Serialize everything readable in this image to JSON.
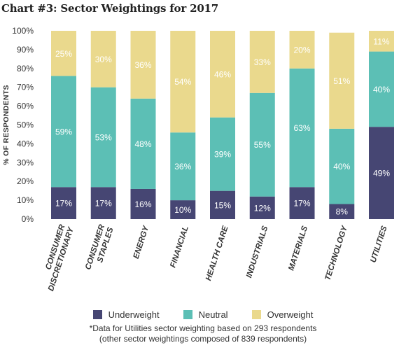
{
  "title": "Chart #3: Sector Weightings for 2017",
  "chart_data": {
    "type": "bar",
    "stacked": true,
    "title": "Chart #3: Sector Weightings for 2017",
    "ylabel": "% OF RESPONDENTS",
    "xlabel": "",
    "ylim": [
      0,
      100
    ],
    "yticks": [
      "0%",
      "10%",
      "20%",
      "30%",
      "40%",
      "50%",
      "60%",
      "70%",
      "80%",
      "90%",
      "100%"
    ],
    "categories": [
      "CONSUMER DISCRETIONARY",
      "CONSUMER STAPLES",
      "ENERGY",
      "FINANCIAL",
      "HEALTH CARE",
      "INDUSTRIALS",
      "MATERIALS",
      "TECHNOLOGY",
      "UTILITIES"
    ],
    "category_lines": [
      [
        "CONSUMER",
        "DISCRETIONARY"
      ],
      [
        "CONSUMER",
        "STAPLES"
      ],
      [
        "ENERGY"
      ],
      [
        "FINANCIAL"
      ],
      [
        "HEALTH CARE"
      ],
      [
        "INDUSTRIALS"
      ],
      [
        "MATERIALS"
      ],
      [
        "TECHNOLOGY"
      ],
      [
        "UTILITIES"
      ]
    ],
    "series": [
      {
        "name": "Underweight",
        "color": "#464673",
        "values": [
          17,
          17,
          16,
          10,
          15,
          12,
          17,
          8,
          49
        ]
      },
      {
        "name": "Neutral",
        "color": "#5cbfb5",
        "values": [
          59,
          53,
          48,
          36,
          39,
          55,
          63,
          40,
          40
        ]
      },
      {
        "name": "Overweight",
        "color": "#ead98d",
        "values": [
          25,
          30,
          36,
          54,
          46,
          33,
          20,
          51,
          11
        ]
      }
    ],
    "legend": "bottom-center",
    "grid": false
  },
  "footnote": {
    "line1": "*Data for Utilities sector weighting based on 293 respondents",
    "line2": "(other sector weightings composed of 839 respondents)"
  }
}
